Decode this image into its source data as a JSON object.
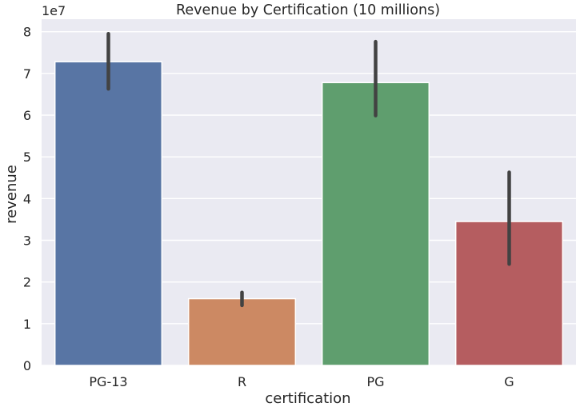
{
  "chart_data": {
    "type": "bar",
    "title": "Revenue by Certification (10 millions)",
    "xlabel": "certification",
    "ylabel": "revenue",
    "y_scale_label": "1e7",
    "categories": [
      "PG-13",
      "R",
      "PG",
      "G"
    ],
    "values": [
      7.28,
      1.6,
      6.78,
      3.45
    ],
    "error_low": [
      6.63,
      1.44,
      5.99,
      2.43
    ],
    "error_high": [
      7.95,
      1.75,
      7.76,
      4.63
    ],
    "colors": [
      "#5875a4",
      "#cc8963",
      "#5f9e6e",
      "#b55d60"
    ],
    "ylim": [
      0,
      8.3
    ],
    "yticks": [
      "0",
      "1",
      "2",
      "3",
      "4",
      "5",
      "6",
      "7",
      "8"
    ],
    "grid": true,
    "background": "#eaeaf2",
    "errorbar_color": "#424242"
  }
}
